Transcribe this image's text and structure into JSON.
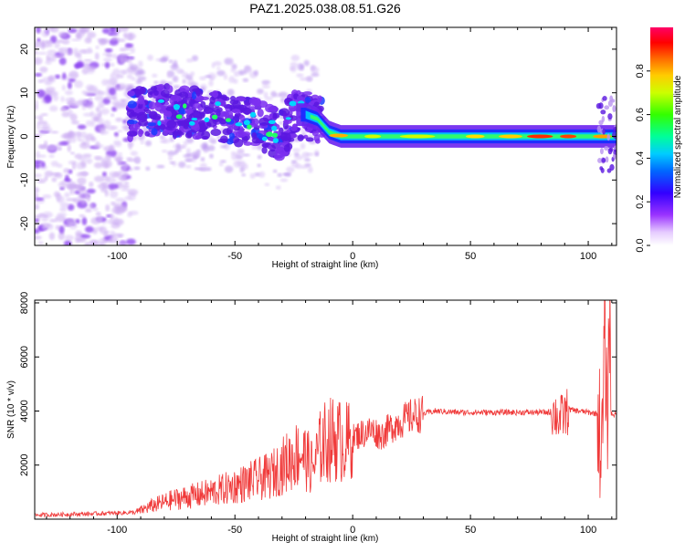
{
  "figure_title": "PAZ1.2025.038.08.51.G26",
  "colors": {
    "snr_line": "#f03a3a",
    "spec_dense": "#5a16e0",
    "spec_light": "#c9a8f2"
  },
  "chart_data": [
    {
      "type": "heatmap",
      "title": "PAZ1.2025.038.08.51.G26",
      "xlabel": "Height of straight line (km)",
      "ylabel": "Frequency (Hz)",
      "xlim": [
        -135,
        112
      ],
      "ylim": [
        -25,
        25
      ],
      "xticks": [
        -100,
        -50,
        0,
        50,
        100
      ],
      "yticks": [
        -20,
        -10,
        0,
        10,
        20
      ],
      "grid": false,
      "colorbar": {
        "label": "Normalized spectral amplitude",
        "range": [
          0,
          1
        ],
        "ticks": [
          0.0,
          0.2,
          0.4,
          0.6,
          0.8
        ],
        "colormap": "rainbow"
      },
      "ridge": {
        "description_points_x": [
          -95,
          -80,
          -60,
          -40,
          -30,
          -25,
          -20,
          -15,
          -10,
          -5,
          0,
          20,
          40,
          60,
          80,
          100,
          110
        ],
        "frequency_hz": [
          5,
          6,
          5,
          3,
          0,
          5,
          5,
          4,
          1,
          0,
          0,
          0,
          0,
          0,
          0,
          0,
          0
        ]
      }
    },
    {
      "type": "line",
      "xlabel": "Height of straight line (km)",
      "ylabel": "SNR (10 * v/v)",
      "xlim": [
        -135,
        112
      ],
      "ylim": [
        0,
        8100
      ],
      "xticks": [
        -100,
        -50,
        0,
        50,
        100
      ],
      "yticks": [
        2000,
        4000,
        6000,
        8000
      ],
      "grid": false,
      "series": [
        {
          "x": [
            -135,
            -110,
            -92,
            -85,
            -75,
            -65,
            -55,
            -45,
            -35,
            -28,
            -22,
            -17,
            -13,
            -8,
            -3,
            2,
            8,
            12,
            18,
            25,
            30,
            35,
            45,
            55,
            65,
            75,
            85,
            88,
            92,
            100,
            104,
            106,
            107,
            108,
            109,
            110,
            112
          ],
          "y": [
            150,
            200,
            250,
            500,
            750,
            900,
            1100,
            1350,
            1600,
            2100,
            2500,
            1900,
            2800,
            3000,
            2800,
            3100,
            3300,
            3100,
            3500,
            3800,
            3900,
            4000,
            3950,
            3950,
            3950,
            3950,
            3950,
            3700,
            4050,
            3950,
            3900,
            2500,
            7500,
            3200,
            7800,
            3900,
            3850
          ]
        }
      ]
    }
  ]
}
